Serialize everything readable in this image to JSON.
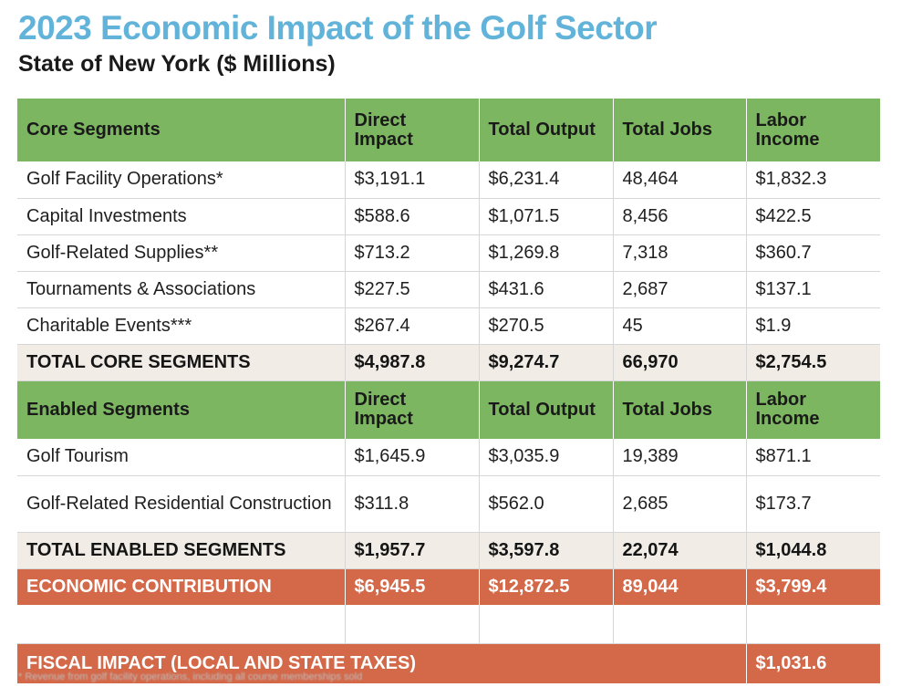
{
  "title": "2023 Economic Impact of the Golf Sector",
  "subtitle": "State of New York ($ Millions)",
  "columns": [
    "Direct Impact",
    "Total Output",
    "Total Jobs",
    "Labor Income"
  ],
  "core": {
    "header": "Core Segments",
    "rows": [
      {
        "name": "Golf Facility Operations*",
        "direct": "$3,191.1",
        "output": "$6,231.4",
        "jobs": "48,464",
        "labor": "$1,832.3"
      },
      {
        "name": "Capital Investments",
        "direct": "$588.6",
        "output": "$1,071.5",
        "jobs": "8,456",
        "labor": "$422.5"
      },
      {
        "name": "Golf-Related Supplies**",
        "direct": "$713.2",
        "output": "$1,269.8",
        "jobs": "7,318",
        "labor": "$360.7"
      },
      {
        "name": "Tournaments & Associations",
        "direct": "$227.5",
        "output": "$431.6",
        "jobs": "2,687",
        "labor": "$137.1"
      },
      {
        "name": "Charitable Events***",
        "direct": "$267.4",
        "output": "$270.5",
        "jobs": "45",
        "labor": "$1.9"
      }
    ],
    "total": {
      "name": "TOTAL CORE SEGMENTS",
      "direct": "$4,987.8",
      "output": "$9,274.7",
      "jobs": "66,970",
      "labor": "$2,754.5"
    }
  },
  "enabled": {
    "header": "Enabled Segments",
    "rows": [
      {
        "name": "Golf Tourism",
        "direct": "$1,645.9",
        "output": "$3,035.9",
        "jobs": "19,389",
        "labor": "$871.1"
      },
      {
        "name": "Golf-Related Residential Construction",
        "direct": "$311.8",
        "output": "$562.0",
        "jobs": "2,685",
        "labor": "$173.7"
      }
    ],
    "total": {
      "name": "TOTAL ENABLED SEGMENTS",
      "direct": "$1,957.7",
      "output": "$3,597.8",
      "jobs": "22,074",
      "labor": "$1,044.8"
    }
  },
  "contribution": {
    "name": "ECONOMIC CONTRIBUTION",
    "direct": "$6,945.5",
    "output": "$12,872.5",
    "jobs": "89,044",
    "labor": "$3,799.4"
  },
  "fiscal": {
    "name": "FISCAL IMPACT (LOCAL AND STATE TAXES)",
    "value": "$1,031.6"
  },
  "footnote": "* Revenue from golf facility operations, including all course memberships sold"
}
